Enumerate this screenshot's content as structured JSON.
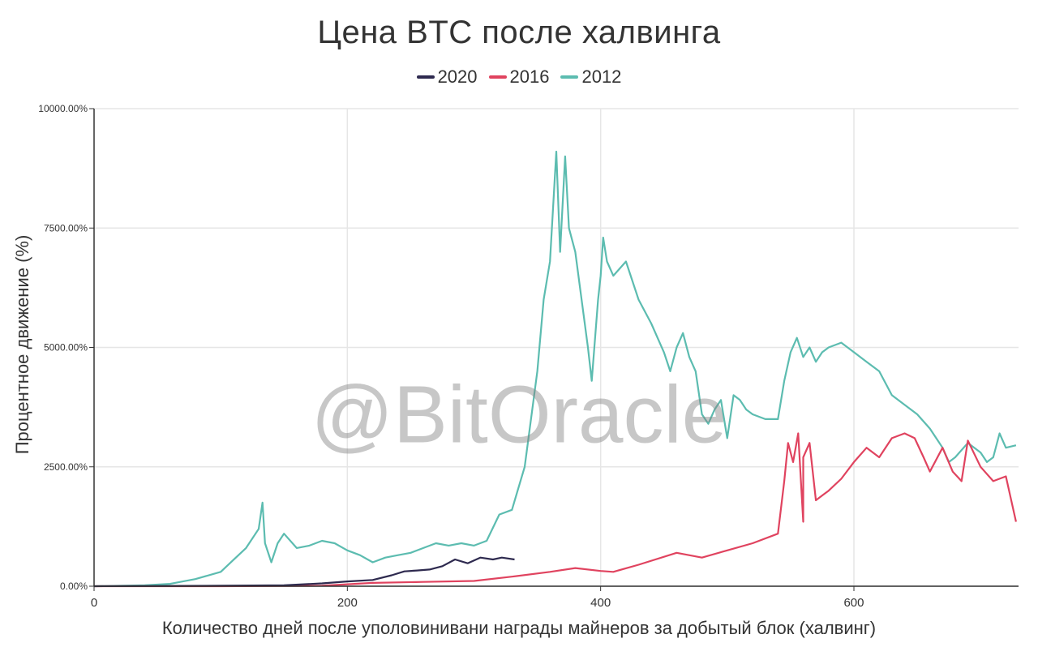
{
  "watermark": "@BitOracle",
  "colors": {
    "s2020": "#2e2a4f",
    "s2016": "#e0435f",
    "s2012": "#5cbcb0",
    "grid": "#e6e6e6",
    "axis": "#333333"
  },
  "chart_data": {
    "type": "line",
    "title": "Цена BTC после халвинга",
    "xlabel": "Количество дней после уполовинивани награды майнеров за добытый блок (халвинг)",
    "ylabel": "Процентное движение (%)",
    "xlim": [
      0,
      730
    ],
    "ylim": [
      0,
      10000
    ],
    "x_ticks": [
      0,
      200,
      400,
      600
    ],
    "y_ticks": [
      0,
      2500,
      5000,
      7500,
      10000
    ],
    "y_tick_labels": [
      "0.00%",
      "2500.00%",
      "5000.00%",
      "7500.00%",
      "10000.00%"
    ],
    "grid": true,
    "legend_position": "top-center",
    "series": [
      {
        "name": "2020",
        "color": "#2e2a4f",
        "points": [
          [
            0,
            0
          ],
          [
            50,
            5
          ],
          [
            100,
            10
          ],
          [
            150,
            20
          ],
          [
            180,
            60
          ],
          [
            200,
            100
          ],
          [
            220,
            130
          ],
          [
            235,
            230
          ],
          [
            245,
            310
          ],
          [
            255,
            330
          ],
          [
            265,
            350
          ],
          [
            275,
            420
          ],
          [
            285,
            560
          ],
          [
            295,
            480
          ],
          [
            305,
            600
          ],
          [
            315,
            560
          ],
          [
            322,
            600
          ],
          [
            332,
            560
          ]
        ]
      },
      {
        "name": "2016",
        "color": "#e0435f",
        "points": [
          [
            0,
            0
          ],
          [
            100,
            0
          ],
          [
            180,
            10
          ],
          [
            220,
            70
          ],
          [
            260,
            90
          ],
          [
            300,
            110
          ],
          [
            330,
            200
          ],
          [
            360,
            300
          ],
          [
            380,
            380
          ],
          [
            400,
            320
          ],
          [
            410,
            300
          ],
          [
            430,
            450
          ],
          [
            460,
            700
          ],
          [
            480,
            600
          ],
          [
            500,
            750
          ],
          [
            520,
            900
          ],
          [
            540,
            1100
          ],
          [
            560,
            1350
          ],
          [
            570,
            1800
          ],
          [
            580,
            2000
          ],
          [
            590,
            2250
          ],
          [
            600,
            2600
          ],
          [
            610,
            2900
          ],
          [
            620,
            2700
          ],
          [
            630,
            3100
          ],
          [
            640,
            3200
          ],
          [
            648,
            3100
          ],
          [
            655,
            2700
          ],
          [
            660,
            2400
          ],
          [
            670,
            2900
          ],
          [
            678,
            2400
          ],
          [
            685,
            2200
          ],
          [
            690,
            3050
          ],
          [
            700,
            2500
          ],
          [
            710,
            2200
          ],
          [
            720,
            2300
          ],
          [
            728,
            1350
          ],
          [
            545,
            2200
          ],
          [
            548,
            3000
          ],
          [
            552,
            2600
          ],
          [
            556,
            3200
          ],
          [
            560,
            2700
          ],
          [
            565,
            3000
          ]
        ]
      },
      {
        "name": "2012",
        "color": "#5cbcb0",
        "points": [
          [
            0,
            0
          ],
          [
            40,
            20
          ],
          [
            60,
            50
          ],
          [
            80,
            150
          ],
          [
            100,
            300
          ],
          [
            110,
            550
          ],
          [
            120,
            800
          ],
          [
            130,
            1200
          ],
          [
            133,
            1750
          ],
          [
            135,
            900
          ],
          [
            140,
            500
          ],
          [
            145,
            900
          ],
          [
            150,
            1100
          ],
          [
            160,
            800
          ],
          [
            170,
            850
          ],
          [
            180,
            950
          ],
          [
            190,
            900
          ],
          [
            200,
            750
          ],
          [
            210,
            650
          ],
          [
            220,
            500
          ],
          [
            230,
            600
          ],
          [
            240,
            650
          ],
          [
            250,
            700
          ],
          [
            260,
            800
          ],
          [
            270,
            900
          ],
          [
            280,
            850
          ],
          [
            290,
            900
          ],
          [
            300,
            850
          ],
          [
            310,
            950
          ],
          [
            320,
            1500
          ],
          [
            330,
            1600
          ],
          [
            340,
            2500
          ],
          [
            345,
            3500
          ],
          [
            350,
            4500
          ],
          [
            355,
            6000
          ],
          [
            360,
            6800
          ],
          [
            365,
            9100
          ],
          [
            368,
            7000
          ],
          [
            372,
            9000
          ],
          [
            375,
            7500
          ],
          [
            380,
            7000
          ],
          [
            385,
            6000
          ],
          [
            390,
            5000
          ],
          [
            393,
            4300
          ],
          [
            398,
            6000
          ],
          [
            400,
            6500
          ],
          [
            402,
            7300
          ],
          [
            405,
            6800
          ],
          [
            410,
            6500
          ],
          [
            420,
            6800
          ],
          [
            430,
            6000
          ],
          [
            440,
            5500
          ],
          [
            450,
            4900
          ],
          [
            455,
            4500
          ],
          [
            460,
            5000
          ],
          [
            465,
            5300
          ],
          [
            470,
            4800
          ],
          [
            475,
            4500
          ],
          [
            480,
            3600
          ],
          [
            485,
            3400
          ],
          [
            490,
            3700
          ],
          [
            495,
            3900
          ],
          [
            500,
            3100
          ],
          [
            505,
            4000
          ],
          [
            510,
            3900
          ],
          [
            515,
            3700
          ],
          [
            520,
            3600
          ],
          [
            530,
            3500
          ],
          [
            540,
            3500
          ],
          [
            545,
            4300
          ],
          [
            550,
            4900
          ],
          [
            555,
            5200
          ],
          [
            560,
            4800
          ],
          [
            565,
            5000
          ],
          [
            570,
            4700
          ],
          [
            575,
            4900
          ],
          [
            580,
            5000
          ],
          [
            590,
            5100
          ],
          [
            600,
            4900
          ],
          [
            610,
            4700
          ],
          [
            620,
            4500
          ],
          [
            630,
            4000
          ],
          [
            640,
            3800
          ],
          [
            650,
            3600
          ],
          [
            660,
            3300
          ],
          [
            665,
            3100
          ],
          [
            670,
            2900
          ],
          [
            675,
            2600
          ],
          [
            680,
            2700
          ],
          [
            690,
            3000
          ],
          [
            700,
            2800
          ],
          [
            705,
            2600
          ],
          [
            710,
            2700
          ],
          [
            715,
            3200
          ],
          [
            720,
            2900
          ],
          [
            728,
            2950
          ]
        ]
      }
    ]
  }
}
